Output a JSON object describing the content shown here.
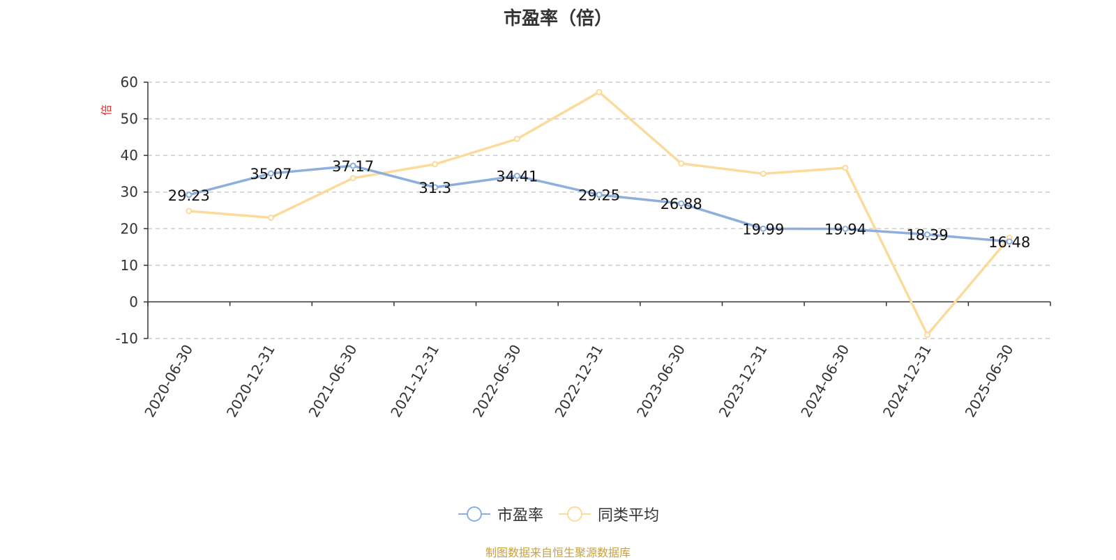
{
  "chart_data": {
    "type": "line",
    "title": "市盈率（倍）",
    "ylabel": "倍",
    "xlabel": "",
    "categories": [
      "2020-06-30",
      "2020-12-31",
      "2021-06-30",
      "2021-12-31",
      "2022-06-30",
      "2022-12-31",
      "2023-06-30",
      "2023-12-31",
      "2024-06-30",
      "2024-12-31",
      "2025-06-30"
    ],
    "ylim": [
      -10,
      60
    ],
    "yticks": [
      -10,
      0,
      10,
      20,
      30,
      40,
      50,
      60
    ],
    "grid": true,
    "legend_position": "bottom",
    "series": [
      {
        "name": "市盈率",
        "color": "#8eaedc",
        "show_labels": true,
        "values": [
          29.23,
          35.07,
          37.17,
          31.3,
          34.41,
          29.25,
          26.88,
          19.99,
          19.94,
          18.39,
          16.48
        ]
      },
      {
        "name": "同类平均",
        "color": "#fbdb9a",
        "show_labels": false,
        "values": [
          24.8,
          23.0,
          33.8,
          37.6,
          44.5,
          57.3,
          37.8,
          35.0,
          36.6,
          -9.0,
          17.5
        ]
      }
    ]
  },
  "source_note": "制图数据来自恒生聚源数据库"
}
